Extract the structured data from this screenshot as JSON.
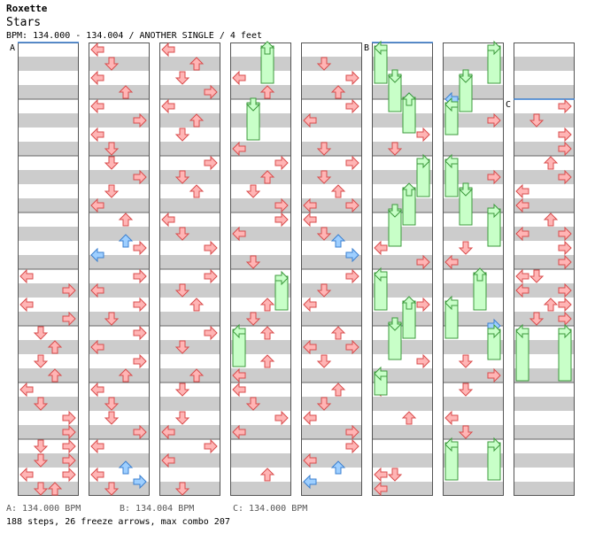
{
  "header": {
    "artist": "Roxette",
    "title": "Stars",
    "info": "BPM: 134.000 - 134.004 / ANOTHER SINGLE / 4 feet"
  },
  "footer": {
    "bpm_a": "A: 134.000 BPM",
    "bpm_b": "B: 134.004 BPM",
    "bpm_c": "C: 134.000 BPM",
    "stats": "188 steps, 26 freeze arrows, max combo 207"
  },
  "markers": [
    "A",
    "B",
    "C"
  ],
  "colors": {
    "tap": "#ffb5b5",
    "tap_stroke": "#d94c4c",
    "shock": "#9ecfff",
    "shock_stroke": "#3a7fd0",
    "freeze": "#c8ffc8",
    "freeze_stroke": "#3c9a3c",
    "stripe": "#cccccc",
    "column_border": "#555555",
    "bpm_line": "#3a7fd0"
  },
  "chart_data": {
    "type": "step-chart",
    "mode": "ANOTHER SINGLE",
    "difficulty_feet": 4,
    "lanes": [
      "left",
      "down",
      "up",
      "right"
    ],
    "measures_per_column": 8,
    "columns": 8,
    "notes_per_measure_grid": 8,
    "taps": [],
    "bpm_changes": [
      {
        "label": "A",
        "measure": 0,
        "bpm": 134.0
      },
      {
        "label": "B",
        "measure": 40,
        "bpm": 134.004
      },
      {
        "label": "C",
        "measure": 57,
        "bpm": 134.0
      }
    ],
    "totals": {
      "steps": 188,
      "freeze_arrows": 26,
      "max_combo": 207
    }
  }
}
